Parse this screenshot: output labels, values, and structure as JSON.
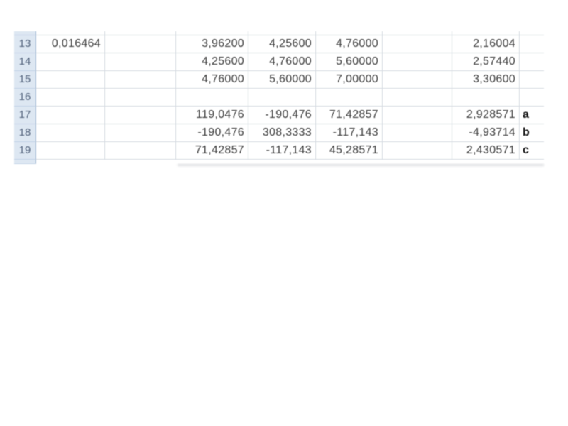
{
  "colors": {
    "canvas_bg": "#ffffff",
    "row_header_bg": "#dde7f2",
    "row_header_text": "#55657e",
    "row_header_border": "#a3bad4",
    "header_grid": "#c2d3e6",
    "grid_line": "#d5dae1",
    "cell_text": "#3b3b3b",
    "label_text": "#111111"
  },
  "grid": {
    "visible_row_numbers": [
      "13",
      "14",
      "15",
      "16",
      "17",
      "18",
      "19"
    ],
    "rows": [
      {
        "num": "13",
        "cells": [
          "0,016464",
          "",
          "3,96200",
          "4,25600",
          "4,76000",
          "",
          "2,16004",
          ""
        ]
      },
      {
        "num": "14",
        "cells": [
          "",
          "",
          "4,25600",
          "4,76000",
          "5,60000",
          "",
          "2,57440",
          ""
        ]
      },
      {
        "num": "15",
        "cells": [
          "",
          "",
          "4,76000",
          "5,60000",
          "7,00000",
          "",
          "3,30600",
          ""
        ]
      },
      {
        "num": "16",
        "cells": [
          "",
          "",
          "",
          "",
          "",
          "",
          "",
          ""
        ]
      },
      {
        "num": "17",
        "cells": [
          "",
          "",
          "119,0476",
          "-190,476",
          "71,42857",
          "",
          "2,928571",
          "a"
        ]
      },
      {
        "num": "18",
        "cells": [
          "",
          "",
          "-190,476",
          "308,3333",
          "-117,143",
          "",
          "-4,93714",
          "b"
        ]
      },
      {
        "num": "19",
        "cells": [
          "",
          "",
          "71,42857",
          "-117,143",
          "45,28571",
          "",
          "2,430571",
          "c"
        ]
      }
    ],
    "label_column_values": [
      "a",
      "b",
      "c"
    ]
  }
}
